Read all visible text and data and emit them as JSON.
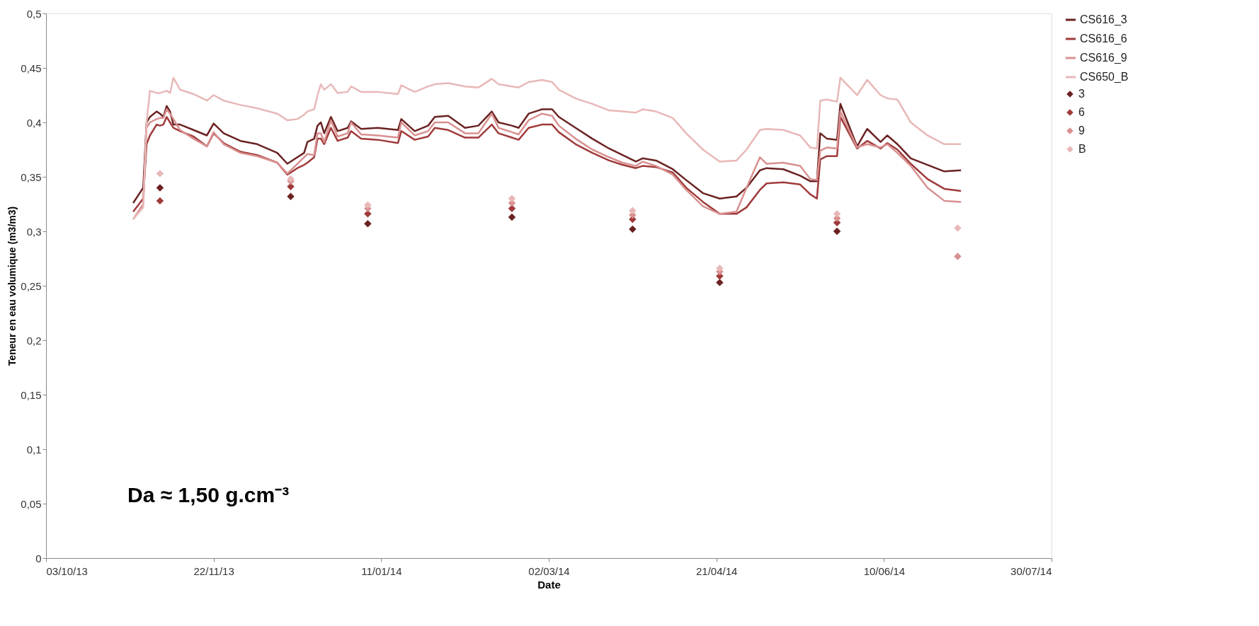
{
  "chart_data": {
    "type": "line",
    "xlabel": "Date",
    "ylabel": "Teneur en eau volumique (m3/m3)",
    "annotations": [
      "Da ≈ 1,50 g.cm⁻³"
    ],
    "x": [
      "2013-10-29",
      "2013-11-01",
      "2013-11-02",
      "2013-11-03",
      "2013-11-05",
      "2013-11-06",
      "2013-11-07",
      "2013-11-08",
      "2013-11-09",
      "2013-11-10",
      "2013-11-12",
      "2013-11-16",
      "2013-11-20",
      "2013-11-22",
      "2013-11-25",
      "2013-11-30",
      "2013-12-05",
      "2013-12-11",
      "2013-12-14",
      "2013-12-17",
      "2013-12-19",
      "2013-12-20",
      "2013-12-22",
      "2013-12-23",
      "2013-12-24",
      "2013-12-25",
      "2013-12-27",
      "2013-12-29",
      "2014-01-01",
      "2014-01-02",
      "2014-01-05",
      "2014-01-10",
      "2014-01-16",
      "2014-01-17",
      "2014-01-21",
      "2014-01-25",
      "2014-01-27",
      "2014-01-31",
      "2014-02-05",
      "2014-02-09",
      "2014-02-13",
      "2014-02-15",
      "2014-02-19",
      "2014-02-21",
      "2014-02-24",
      "2014-02-28",
      "2014-03-03",
      "2014-03-05",
      "2014-03-10",
      "2014-03-15",
      "2014-03-20",
      "2014-03-24",
      "2014-03-28",
      "2014-03-30",
      "2014-04-03",
      "2014-04-08",
      "2014-04-12",
      "2014-04-17",
      "2014-04-22",
      "2014-04-27",
      "2014-04-30",
      "2014-05-04",
      "2014-05-06",
      "2014-05-11",
      "2014-05-16",
      "2014-05-19",
      "2014-05-21",
      "2014-05-22",
      "2014-05-24",
      "2014-05-27",
      "2014-05-28",
      "2014-06-02",
      "2014-06-05",
      "2014-06-09",
      "2014-06-11",
      "2014-06-14",
      "2014-06-18",
      "2014-06-23",
      "2014-06-28",
      "2014-07-03"
    ],
    "series": [
      {
        "name": "CS616_3",
        "color": "#6b2222",
        "values": [
          0.326,
          0.34,
          0.4,
          0.405,
          0.41,
          0.408,
          0.405,
          0.415,
          0.41,
          0.398,
          0.398,
          0.393,
          0.388,
          0.399,
          0.39,
          0.383,
          0.38,
          0.372,
          0.362,
          0.368,
          0.372,
          0.382,
          0.385,
          0.397,
          0.4,
          0.39,
          0.405,
          0.392,
          0.395,
          0.401,
          0.394,
          0.395,
          0.393,
          0.403,
          0.392,
          0.397,
          0.405,
          0.406,
          0.395,
          0.397,
          0.41,
          0.4,
          0.397,
          0.395,
          0.408,
          0.412,
          0.412,
          0.405,
          0.395,
          0.385,
          0.376,
          0.37,
          0.364,
          0.367,
          0.365,
          0.357,
          0.347,
          0.335,
          0.33,
          0.332,
          0.34,
          0.356,
          0.358,
          0.357,
          0.351,
          0.346,
          0.346,
          0.39,
          0.385,
          0.384,
          0.417,
          0.378,
          0.394,
          0.382,
          0.388,
          0.38,
          0.367,
          0.361,
          0.355,
          0.356
        ]
      },
      {
        "name": "CS616_6",
        "color": "#a03a3a",
        "values": [
          0.318,
          0.33,
          0.38,
          0.388,
          0.398,
          0.397,
          0.398,
          0.405,
          0.4,
          0.395,
          0.392,
          0.387,
          0.378,
          0.39,
          0.381,
          0.373,
          0.37,
          0.363,
          0.352,
          0.358,
          0.361,
          0.363,
          0.368,
          0.385,
          0.385,
          0.38,
          0.395,
          0.383,
          0.386,
          0.392,
          0.385,
          0.384,
          0.381,
          0.392,
          0.384,
          0.387,
          0.395,
          0.393,
          0.386,
          0.386,
          0.398,
          0.39,
          0.386,
          0.384,
          0.395,
          0.398,
          0.398,
          0.391,
          0.38,
          0.372,
          0.365,
          0.361,
          0.358,
          0.36,
          0.359,
          0.354,
          0.34,
          0.327,
          0.316,
          0.316,
          0.322,
          0.338,
          0.344,
          0.345,
          0.343,
          0.334,
          0.33,
          0.366,
          0.369,
          0.369,
          0.405,
          0.376,
          0.383,
          0.376,
          0.381,
          0.375,
          0.362,
          0.348,
          0.339,
          0.337
        ]
      },
      {
        "name": "CS616_9",
        "color": "#d99090",
        "values": [
          0.311,
          0.325,
          0.395,
          0.4,
          0.403,
          0.404,
          0.404,
          0.412,
          0.408,
          0.403,
          0.393,
          0.385,
          0.378,
          0.391,
          0.38,
          0.372,
          0.369,
          0.363,
          0.353,
          0.362,
          0.368,
          0.371,
          0.37,
          0.39,
          0.39,
          0.382,
          0.402,
          0.387,
          0.39,
          0.4,
          0.389,
          0.388,
          0.386,
          0.4,
          0.388,
          0.392,
          0.4,
          0.4,
          0.39,
          0.39,
          0.408,
          0.395,
          0.391,
          0.389,
          0.402,
          0.408,
          0.406,
          0.397,
          0.385,
          0.375,
          0.368,
          0.363,
          0.36,
          0.364,
          0.36,
          0.352,
          0.338,
          0.323,
          0.316,
          0.318,
          0.34,
          0.368,
          0.362,
          0.363,
          0.36,
          0.348,
          0.347,
          0.374,
          0.377,
          0.376,
          0.41,
          0.377,
          0.38,
          0.377,
          0.38,
          0.372,
          0.36,
          0.34,
          0.328,
          0.327
        ]
      },
      {
        "name": "CS650_B",
        "color": "#e8b8b8",
        "values": [
          0.311,
          0.322,
          0.4,
          0.429,
          0.427,
          0.427,
          0.428,
          0.429,
          0.427,
          0.441,
          0.43,
          0.426,
          0.42,
          0.425,
          0.42,
          0.416,
          0.413,
          0.408,
          0.402,
          0.403,
          0.407,
          0.41,
          0.412,
          0.425,
          0.435,
          0.43,
          0.435,
          0.427,
          0.428,
          0.433,
          0.428,
          0.428,
          0.426,
          0.434,
          0.428,
          0.433,
          0.435,
          0.436,
          0.433,
          0.432,
          0.44,
          0.435,
          0.433,
          0.432,
          0.437,
          0.439,
          0.437,
          0.43,
          0.422,
          0.417,
          0.411,
          0.41,
          0.409,
          0.412,
          0.41,
          0.404,
          0.39,
          0.375,
          0.364,
          0.365,
          0.375,
          0.393,
          0.394,
          0.393,
          0.388,
          0.377,
          0.376,
          0.42,
          0.421,
          0.419,
          0.441,
          0.425,
          0.439,
          0.425,
          0.422,
          0.421,
          0.4,
          0.388,
          0.38,
          0.38
        ]
      },
      {
        "name": "3",
        "type": "scatter",
        "marker": "diamond",
        "color": "#6b2222",
        "x": [
          "2013-11-06",
          "2013-12-15",
          "2014-01-07",
          "2014-02-19",
          "2014-03-27",
          "2014-04-22",
          "2014-05-27"
        ],
        "values": [
          0.34,
          0.332,
          0.307,
          0.313,
          0.302,
          0.253,
          0.3
        ]
      },
      {
        "name": "6",
        "type": "scatter",
        "marker": "diamond",
        "color": "#a03a3a",
        "x": [
          "2013-11-06",
          "2013-12-15",
          "2014-01-07",
          "2014-02-19",
          "2014-03-27",
          "2014-04-22",
          "2014-05-27"
        ],
        "values": [
          0.328,
          0.341,
          0.316,
          0.321,
          0.311,
          0.259,
          0.308
        ]
      },
      {
        "name": "9",
        "type": "scatter",
        "marker": "diamond",
        "color": "#d99090",
        "x": [
          "2013-12-15",
          "2014-01-07",
          "2014-02-19",
          "2014-03-27",
          "2014-04-22",
          "2014-05-27",
          "2014-07-02"
        ],
        "values": [
          0.346,
          0.321,
          0.326,
          0.315,
          0.263,
          0.312,
          0.277
        ]
      },
      {
        "name": "B",
        "type": "scatter",
        "marker": "diamond",
        "color": "#e8b8b8",
        "x": [
          "2013-11-06",
          "2013-12-15",
          "2014-01-07",
          "2014-02-19",
          "2014-03-27",
          "2014-04-22",
          "2014-05-27",
          "2014-07-02"
        ],
        "values": [
          0.353,
          0.348,
          0.324,
          0.33,
          0.319,
          0.266,
          0.316,
          0.303
        ]
      }
    ],
    "xlim": [
      "2013-10-03",
      "2014-07-30"
    ],
    "xticks": [
      {
        "value": "2013-10-03",
        "label": "03/10/13"
      },
      {
        "value": "2013-11-22",
        "label": "22/11/13"
      },
      {
        "value": "2014-01-11",
        "label": "11/01/14"
      },
      {
        "value": "2014-03-02",
        "label": "02/03/14"
      },
      {
        "value": "2014-04-21",
        "label": "21/04/14"
      },
      {
        "value": "2014-06-10",
        "label": "10/06/14"
      },
      {
        "value": "2014-07-30",
        "label": "30/07/14"
      }
    ],
    "ylim": [
      0,
      0.5
    ],
    "yticks": [
      0,
      {
        "value": 0.05,
        "label": "0,05"
      },
      {
        "value": 0.1,
        "label": "0,1"
      },
      {
        "value": 0.15,
        "label": "0,15"
      },
      {
        "value": 0.2,
        "label": "0,2"
      },
      {
        "value": 0.25,
        "label": "0,25"
      },
      {
        "value": 0.3,
        "label": "0,3"
      },
      {
        "value": 0.35,
        "label": "0,35"
      },
      {
        "value": 0.4,
        "label": "0,4"
      },
      {
        "value": 0.45,
        "label": "0,45"
      },
      {
        "value": 0.5,
        "label": "0,5"
      }
    ],
    "grid": false,
    "legend": "right"
  }
}
